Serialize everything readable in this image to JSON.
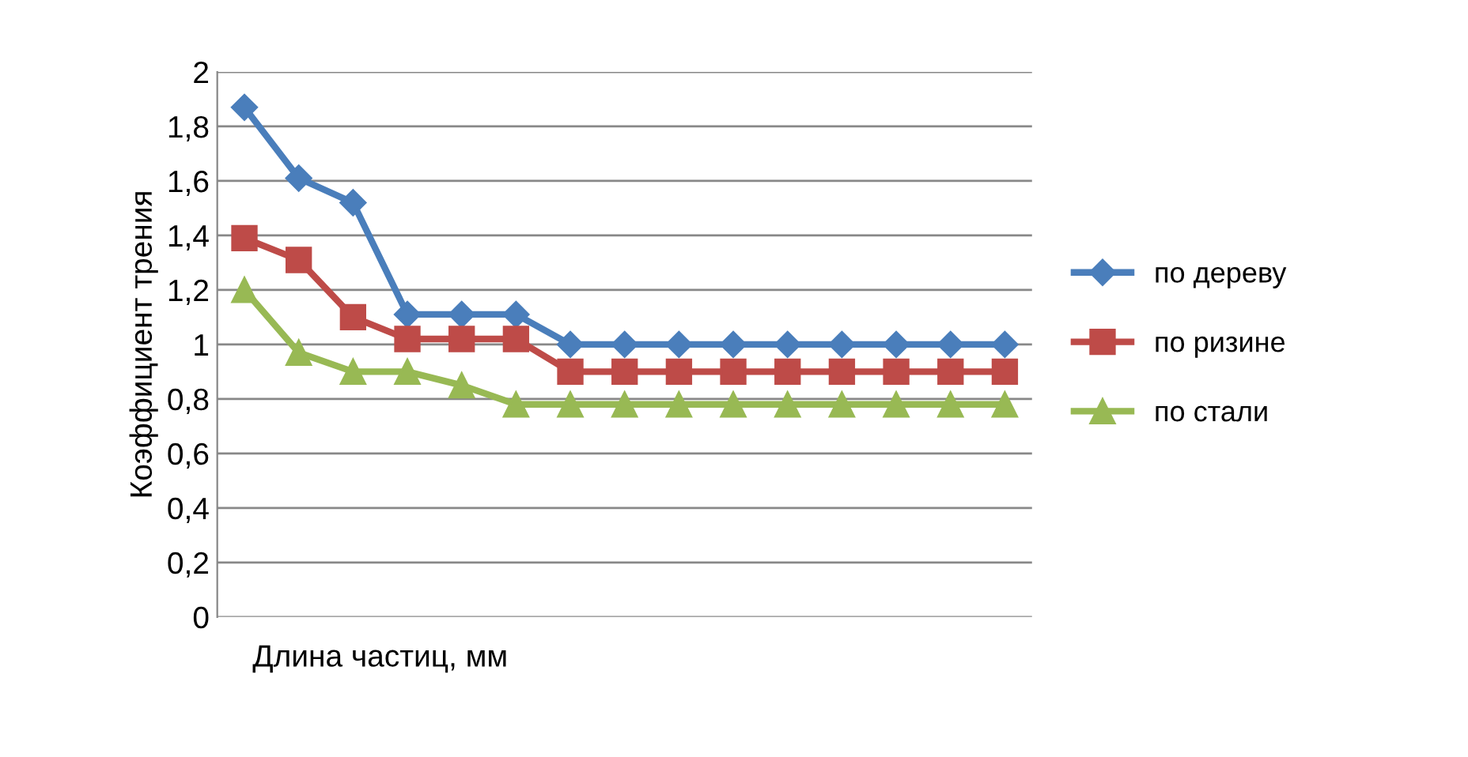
{
  "chart_data": {
    "type": "line",
    "ylabel": "Коэффициент трения",
    "xlabel": "Длина частиц, мм",
    "categories": [
      null,
      null,
      null,
      null,
      null,
      null,
      null,
      null,
      null,
      null,
      null,
      null,
      null,
      null,
      null
    ],
    "series": [
      {
        "name": "по дереву",
        "color": "#4a7ebb",
        "marker": "diamond",
        "values": [
          1.87,
          1.61,
          1.52,
          1.11,
          1.11,
          1.11,
          1.0,
          1.0,
          1.0,
          1.0,
          1.0,
          1.0,
          1.0,
          1.0,
          1.0
        ]
      },
      {
        "name": "по ризине",
        "color": "#be4b48",
        "marker": "square",
        "values": [
          1.39,
          1.31,
          1.1,
          1.02,
          1.02,
          1.02,
          0.9,
          0.9,
          0.9,
          0.9,
          0.9,
          0.9,
          0.9,
          0.9,
          0.9
        ]
      },
      {
        "name": "по стали",
        "color": "#98b954",
        "marker": "triangle",
        "values": [
          1.2,
          0.97,
          0.9,
          0.9,
          0.85,
          0.78,
          0.78,
          0.78,
          0.78,
          0.78,
          0.78,
          0.78,
          0.78,
          0.78,
          0.78
        ]
      }
    ],
    "ylim": [
      0,
      2
    ],
    "yticks": [
      0,
      {
        "value": 0.2,
        "label": "0,2"
      },
      {
        "value": 0.4,
        "label": "0,4"
      },
      {
        "value": 0.6,
        "label": "0,6"
      },
      {
        "value": 0.8,
        "label": "0,8"
      },
      1,
      {
        "value": 1.2,
        "label": "1,2"
      },
      {
        "value": 1.4,
        "label": "1,4"
      },
      {
        "value": 1.6,
        "label": "1,6"
      },
      {
        "value": 1.8,
        "label": "1,8"
      },
      2
    ],
    "grid": "y",
    "legend": "right",
    "line_style": "solid"
  }
}
